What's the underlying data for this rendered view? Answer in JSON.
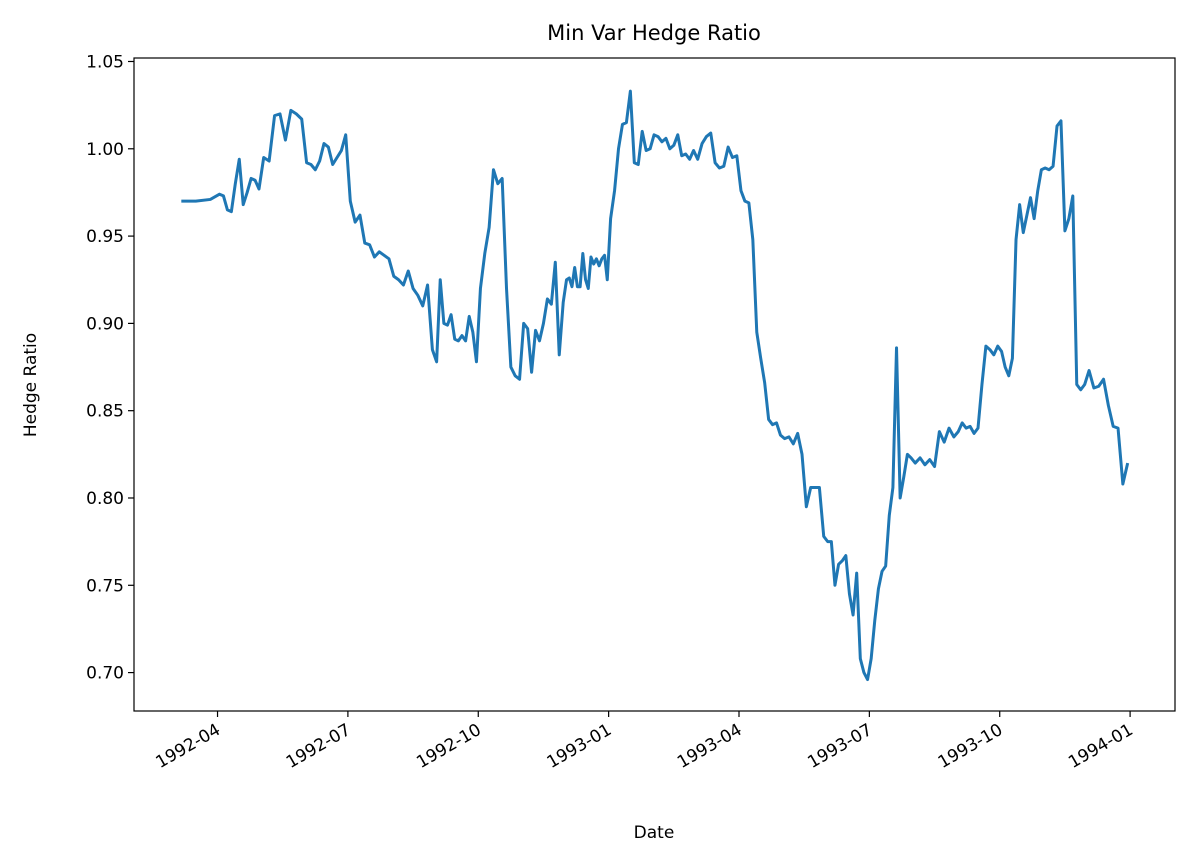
{
  "chart_data": {
    "type": "line",
    "title": "Min Var Hedge Ratio",
    "xlabel": "Date",
    "ylabel": "Hedge Ratio",
    "x": [
      "1992-03",
      "1992-03",
      "1992-03",
      "1992-04",
      "1992-04",
      "1992-04",
      "1992-04",
      "1992-04",
      "1992-04",
      "1992-04",
      "1992-04",
      "1992-04",
      "1992-04",
      "1992-04",
      "1992-05",
      "1992-05",
      "1992-05",
      "1992-05",
      "1992-05",
      "1992-05",
      "1992-05",
      "1992-05",
      "1992-06",
      "1992-06",
      "1992-06",
      "1992-06",
      "1992-06",
      "1992-06",
      "1992-06",
      "1992-06",
      "1992-06",
      "1992-06",
      "1992-07",
      "1992-07",
      "1992-07",
      "1992-07",
      "1992-07",
      "1992-07",
      "1992-07",
      "1992-07",
      "1992-07",
      "1992-08",
      "1992-08",
      "1992-08",
      "1992-08",
      "1992-08",
      "1992-08",
      "1992-08",
      "1992-08",
      "1992-08",
      "1992-09",
      "1992-09",
      "1992-09",
      "1992-09",
      "1992-09",
      "1992-09",
      "1992-09",
      "1992-09",
      "1992-09",
      "1992-09",
      "1992-09",
      "1992-09",
      "1992-10",
      "1992-10",
      "1992-10",
      "1992-10",
      "1992-10",
      "1992-10",
      "1992-10",
      "1992-10",
      "1992-10",
      "1992-10",
      "1992-11",
      "1992-11",
      "1992-11",
      "1992-11",
      "1992-11",
      "1992-11",
      "1992-11",
      "1992-11",
      "1992-11",
      "1992-11",
      "1992-11",
      "1992-12",
      "1992-12",
      "1992-12",
      "1992-12",
      "1992-12",
      "1992-12",
      "1992-12",
      "1992-12",
      "1992-12",
      "1992-12",
      "1992-12",
      "1992-12",
      "1992-12",
      "1992-12",
      "1992-12",
      "1992-12",
      "1993-01",
      "1993-01",
      "1993-01",
      "1993-01",
      "1993-01",
      "1993-01",
      "1993-01",
      "1993-01",
      "1993-01",
      "1993-01",
      "1993-01",
      "1993-02",
      "1993-02",
      "1993-02",
      "1993-02",
      "1993-02",
      "1993-02",
      "1993-02",
      "1993-02",
      "1993-02",
      "1993-02",
      "1993-02",
      "1993-03",
      "1993-03",
      "1993-03",
      "1993-03",
      "1993-03",
      "1993-03",
      "1993-03",
      "1993-03",
      "1993-03",
      "1993-03",
      "1993-04",
      "1993-04",
      "1993-04",
      "1993-04",
      "1993-04",
      "1993-04",
      "1993-04",
      "1993-04",
      "1993-04",
      "1993-04",
      "1993-04",
      "1993-05",
      "1993-05",
      "1993-05",
      "1993-05",
      "1993-05",
      "1993-05",
      "1993-05",
      "1993-05",
      "1993-05",
      "1993-05",
      "1993-06",
      "1993-06",
      "1993-06",
      "1993-06",
      "1993-06",
      "1993-06",
      "1993-06",
      "1993-06",
      "1993-06",
      "1993-06",
      "1993-06",
      "1993-06",
      "1993-07",
      "1993-07",
      "1993-07",
      "1993-07",
      "1993-07",
      "1993-07",
      "1993-07",
      "1993-07",
      "1993-07",
      "1993-07",
      "1993-07",
      "1993-07",
      "1993-08",
      "1993-08",
      "1993-08",
      "1993-08",
      "1993-08",
      "1993-08",
      "1993-08",
      "1993-08",
      "1993-08",
      "1993-09",
      "1993-09",
      "1993-09",
      "1993-09",
      "1993-09",
      "1993-09",
      "1993-09",
      "1993-09",
      "1993-09",
      "1993-09",
      "1993-09",
      "1993-10",
      "1993-10",
      "1993-10",
      "1993-10",
      "1993-10",
      "1993-10",
      "1993-10",
      "1993-10",
      "1993-10",
      "1993-10",
      "1993-10",
      "1993-10",
      "1993-11",
      "1993-11",
      "1993-11",
      "1993-11",
      "1993-11",
      "1993-11",
      "1993-11",
      "1993-11",
      "1993-11",
      "1993-11",
      "1993-11",
      "1993-12",
      "1993-12",
      "1993-12",
      "1993-12",
      "1993-12",
      "1993-12",
      "1993-12",
      "1993-12",
      "1993-12"
    ],
    "series": [
      {
        "color": "#1f77b4",
        "values": [
          0.97,
          0.97,
          0.971,
          0.974,
          0.973,
          0.965,
          0.964,
          0.98,
          0.994,
          0.968,
          0.975,
          0.983,
          0.982,
          0.977,
          0.995,
          0.993,
          1.019,
          1.02,
          1.005,
          1.022,
          1.02,
          1.017,
          0.992,
          0.991,
          0.988,
          0.993,
          1.003,
          1.001,
          0.991,
          0.995,
          0.999,
          1.008,
          0.97,
          0.958,
          0.962,
          0.946,
          0.945,
          0.938,
          0.941,
          0.939,
          0.937,
          0.927,
          0.925,
          0.922,
          0.93,
          0.92,
          0.916,
          0.91,
          0.922,
          0.885,
          0.878,
          0.925,
          0.9,
          0.899,
          0.905,
          0.891,
          0.89,
          0.893,
          0.89,
          0.904,
          0.895,
          0.878,
          0.92,
          0.94,
          0.955,
          0.988,
          0.98,
          0.983,
          0.92,
          0.875,
          0.87,
          0.868,
          0.9,
          0.897,
          0.872,
          0.896,
          0.89,
          0.9,
          0.914,
          0.911,
          0.935,
          0.882,
          0.912,
          0.925,
          0.926,
          0.921,
          0.932,
          0.921,
          0.921,
          0.94,
          0.925,
          0.92,
          0.938,
          0.934,
          0.937,
          0.933,
          0.937,
          0.939,
          0.925,
          0.96,
          0.976,
          1.0,
          1.014,
          1.015,
          1.033,
          0.992,
          0.991,
          1.01,
          0.999,
          1.0,
          1.008,
          1.007,
          1.004,
          1.006,
          1.0,
          1.002,
          1.008,
          0.996,
          0.997,
          0.994,
          0.999,
          0.994,
          1.003,
          1.007,
          1.009,
          0.992,
          0.989,
          0.99,
          1.001,
          0.995,
          0.996,
          0.976,
          0.97,
          0.969,
          0.948,
          0.895,
          0.88,
          0.866,
          0.845,
          0.842,
          0.843,
          0.836,
          0.834,
          0.835,
          0.831,
          0.837,
          0.825,
          0.795,
          0.806,
          0.806,
          0.806,
          0.778,
          0.775,
          0.775,
          0.75,
          0.762,
          0.764,
          0.767,
          0.745,
          0.733,
          0.757,
          0.708,
          0.7,
          0.696,
          0.708,
          0.73,
          0.748,
          0.758,
          0.761,
          0.79,
          0.806,
          0.886,
          0.8,
          0.812,
          0.825,
          0.823,
          0.82,
          0.823,
          0.819,
          0.822,
          0.818,
          0.838,
          0.832,
          0.84,
          0.835,
          0.838,
          0.843,
          0.84,
          0.841,
          0.837,
          0.84,
          0.865,
          0.887,
          0.885,
          0.882,
          0.887,
          0.884,
          0.875,
          0.87,
          0.88,
          0.948,
          0.968,
          0.952,
          0.962,
          0.972,
          0.96,
          0.976,
          0.988,
          0.989,
          0.988,
          0.99,
          1.013,
          1.016,
          0.953,
          0.96,
          0.973,
          0.865,
          0.862,
          0.865,
          0.873,
          0.863,
          0.864,
          0.868,
          0.853,
          0.841,
          0.84,
          0.808,
          0.82
        ]
      }
    ],
    "xticks": [
      "1992-04",
      "1992-07",
      "1992-10",
      "1993-01",
      "1993-04",
      "1993-07",
      "1993-10",
      "1994-01"
    ],
    "ylim": [
      0.678,
      1.052
    ],
    "yticks": [
      {
        "value": 0.7,
        "label": "0.70"
      },
      0.75,
      {
        "value": 0.8,
        "label": "0.80"
      },
      0.85,
      {
        "value": 0.9,
        "label": "0.90"
      },
      0.95,
      {
        "value": 1.0,
        "label": "1.00"
      },
      1.05
    ]
  }
}
